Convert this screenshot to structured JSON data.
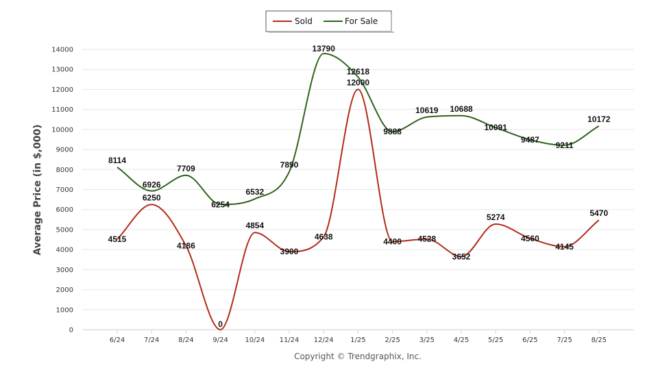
{
  "chart_data": {
    "type": "line",
    "title": "",
    "xlabel": "",
    "ylabel": "Average Price (in $,000)",
    "categories": [
      "6/24",
      "7/24",
      "8/24",
      "9/24",
      "10/24",
      "11/24",
      "12/24",
      "1/25",
      "2/25",
      "3/25",
      "4/25",
      "5/25",
      "6/25",
      "7/25",
      "8/25"
    ],
    "series": [
      {
        "name": "Sold",
        "color": "#b22a1a",
        "values": [
          4515,
          6250,
          4186,
          0,
          4854,
          3900,
          4638,
          12000,
          4400,
          4528,
          3652,
          5274,
          4560,
          4145,
          5470
        ]
      },
      {
        "name": "For Sale",
        "color": "#2c6419",
        "values": [
          8114,
          6926,
          7709,
          6254,
          6532,
          7890,
          13790,
          12618,
          9888,
          10619,
          10688,
          10091,
          9487,
          9211,
          10172
        ]
      }
    ],
    "ylim": [
      0,
      14000
    ],
    "yticks": [
      0,
      1000,
      2000,
      3000,
      4000,
      5000,
      6000,
      7000,
      8000,
      9000,
      10000,
      11000,
      12000,
      13000,
      14000
    ],
    "grid": true,
    "legend": "top-center"
  },
  "footer": "Copyright © Trendgraphix, Inc."
}
